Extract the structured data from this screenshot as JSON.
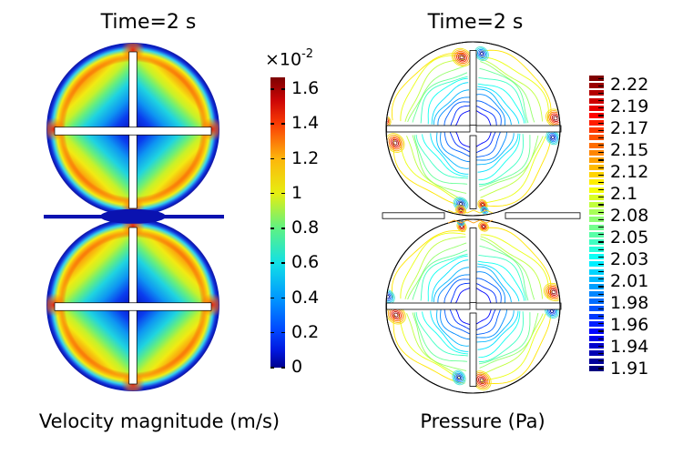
{
  "figure": {
    "background_color": "#ffffff",
    "text_color": "#000000",
    "left_plot": {
      "title": "Time=2 s",
      "caption": "Velocity magnitude (m/s)",
      "colorbar": {
        "multiplier_base": "×10",
        "multiplier_exponent": "-2",
        "tick_labels": [
          "1.6",
          "1.4",
          "1.2",
          "1",
          "0.8",
          "0.6",
          "0.4",
          "0.2",
          "0"
        ],
        "colormap": "jet"
      }
    },
    "right_plot": {
      "title": "Time=2 s",
      "caption": "Pressure (Pa)",
      "colorbar": {
        "tick_labels": [
          "2.22",
          "2.19",
          "2.17",
          "2.15",
          "2.12",
          "2.1",
          "2.08",
          "2.05",
          "2.03",
          "2.01",
          "1.98",
          "1.96",
          "1.94",
          "1.91"
        ],
        "colormap": "jet",
        "segments": 40
      }
    }
  },
  "chart_data": [
    {
      "type": "heatmap",
      "title": "Time=2 s",
      "label": "Velocity magnitude (m/s)",
      "colormap": "jet",
      "colorbar_ticks": [
        1.6,
        1.4,
        1.2,
        1,
        0.8,
        0.6,
        0.4,
        0.2,
        0
      ],
      "colorbar_multiplier": 0.01,
      "value_range": [
        0,
        0.0165
      ],
      "description": "Surface plot of velocity magnitude in two stacked circular mixing tanks, each with a white cross-shaped baffle; blue (zero) at walls, baffle and tank centers, red high-velocity regions filling each quadrant, dark-blue baffle plate at the tank junction"
    },
    {
      "type": "contour",
      "title": "Time=2 s",
      "label": "Pressure (Pa)",
      "colormap": "jet",
      "colorbar_ticks": [
        2.22,
        2.19,
        2.17,
        2.15,
        2.12,
        2.1,
        2.08,
        2.05,
        2.03,
        2.01,
        1.98,
        1.96,
        1.94,
        1.91
      ],
      "value_range": [
        1.91,
        2.22
      ],
      "description": "Rainbow pressure contour lines in the same two circular tanks; blue low-pressure contours near the tank centers, dense red/orange high-pressure clusters and blue low-pressure spots at the baffle arm tips and at the junction"
    }
  ]
}
